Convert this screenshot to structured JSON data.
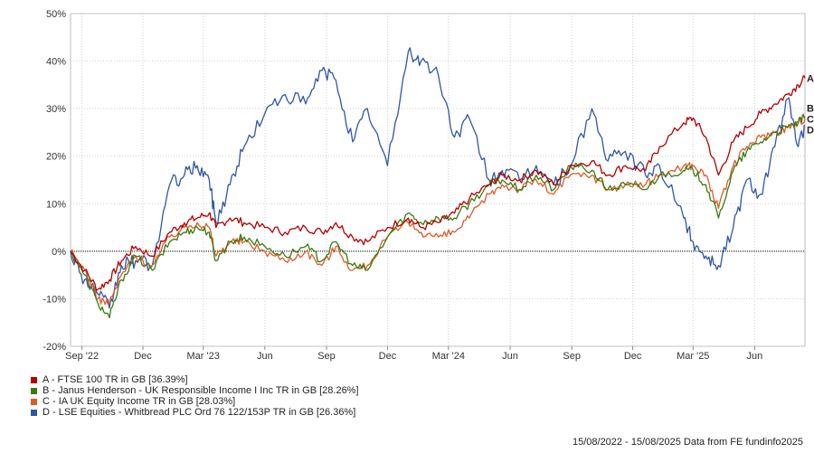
{
  "chart_data": {
    "type": "line",
    "y_unit": "%",
    "ylim": [
      -20,
      50
    ],
    "y_ticks": [
      -20,
      -10,
      0,
      10,
      20,
      30,
      40,
      50
    ],
    "y_tick_labels": [
      "-20%",
      "-10%",
      "0%",
      "10%",
      "20%",
      "30%",
      "40%",
      "50%"
    ],
    "x_range": [
      "2022-08-15",
      "2025-08-15"
    ],
    "x_ticks": [
      {
        "date": "2022-09-01",
        "label": "Sep '22"
      },
      {
        "date": "2022-12-01",
        "label": "Dec"
      },
      {
        "date": "2023-03-01",
        "label": "Mar '23"
      },
      {
        "date": "2023-06-01",
        "label": "Jun"
      },
      {
        "date": "2023-09-01",
        "label": "Sep"
      },
      {
        "date": "2023-12-01",
        "label": "Dec"
      },
      {
        "date": "2024-03-01",
        "label": "Mar '24"
      },
      {
        "date": "2024-06-01",
        "label": "Jun"
      },
      {
        "date": "2024-09-01",
        "label": "Sep"
      },
      {
        "date": "2024-12-01",
        "label": "Dec"
      },
      {
        "date": "2025-03-01",
        "label": "Mar '25"
      },
      {
        "date": "2025-06-01",
        "label": "Jun"
      }
    ],
    "grid": true,
    "legend_position": "bottom-left",
    "series": [
      {
        "letter": "A",
        "name": "A - FTSE 100 TR in GB [36.39%]",
        "color": "#b30000",
        "points": [
          [
            "2022-08-15",
            0
          ],
          [
            "2022-09-05",
            -4
          ],
          [
            "2022-09-25",
            -8
          ],
          [
            "2022-10-12",
            -6
          ],
          [
            "2022-10-30",
            -2
          ],
          [
            "2022-11-20",
            1
          ],
          [
            "2022-12-15",
            -1
          ],
          [
            "2023-01-10",
            4
          ],
          [
            "2023-02-01",
            6
          ],
          [
            "2023-02-20",
            7
          ],
          [
            "2023-03-10",
            8
          ],
          [
            "2023-03-20",
            5
          ],
          [
            "2023-04-10",
            7
          ],
          [
            "2023-05-01",
            6
          ],
          [
            "2023-06-01",
            5
          ],
          [
            "2023-07-01",
            4
          ],
          [
            "2023-08-01",
            5
          ],
          [
            "2023-08-25",
            4
          ],
          [
            "2023-09-15",
            6
          ],
          [
            "2023-10-10",
            3
          ],
          [
            "2023-11-01",
            2
          ],
          [
            "2023-12-01",
            5
          ],
          [
            "2024-01-01",
            7
          ],
          [
            "2024-01-20",
            5
          ],
          [
            "2024-02-15",
            6
          ],
          [
            "2024-03-10",
            8
          ],
          [
            "2024-04-01",
            11
          ],
          [
            "2024-05-01",
            14
          ],
          [
            "2024-05-20",
            16
          ],
          [
            "2024-06-15",
            15
          ],
          [
            "2024-07-10",
            17
          ],
          [
            "2024-08-05",
            14
          ],
          [
            "2024-08-30",
            18
          ],
          [
            "2024-10-01",
            19
          ],
          [
            "2024-10-25",
            16
          ],
          [
            "2024-11-20",
            18
          ],
          [
            "2024-12-20",
            17
          ],
          [
            "2025-01-10",
            22
          ],
          [
            "2025-02-15",
            27
          ],
          [
            "2025-03-01",
            28
          ],
          [
            "2025-03-20",
            24
          ],
          [
            "2025-04-08",
            16
          ],
          [
            "2025-04-30",
            23
          ],
          [
            "2025-05-20",
            26
          ],
          [
            "2025-06-10",
            29
          ],
          [
            "2025-07-01",
            31
          ],
          [
            "2025-07-20",
            33
          ],
          [
            "2025-08-05",
            35
          ],
          [
            "2025-08-15",
            36.39
          ]
        ]
      },
      {
        "letter": "B",
        "name": "B - Janus Henderson - UK Responsible Income I Inc TR in GB [28.26%]",
        "color": "#3a7a10",
        "points": [
          [
            "2022-08-15",
            0
          ],
          [
            "2022-09-05",
            -5
          ],
          [
            "2022-09-25",
            -11
          ],
          [
            "2022-10-12",
            -14
          ],
          [
            "2022-10-30",
            -6
          ],
          [
            "2022-11-20",
            -1
          ],
          [
            "2022-12-15",
            -4
          ],
          [
            "2023-01-10",
            2
          ],
          [
            "2023-02-01",
            4
          ],
          [
            "2023-02-20",
            5
          ],
          [
            "2023-03-10",
            4
          ],
          [
            "2023-03-20",
            -2
          ],
          [
            "2023-04-10",
            2
          ],
          [
            "2023-05-01",
            3
          ],
          [
            "2023-06-01",
            1
          ],
          [
            "2023-07-01",
            -1
          ],
          [
            "2023-08-01",
            1
          ],
          [
            "2023-08-25",
            -2
          ],
          [
            "2023-09-15",
            2
          ],
          [
            "2023-10-10",
            -3
          ],
          [
            "2023-11-01",
            -4
          ],
          [
            "2023-12-01",
            3
          ],
          [
            "2024-01-01",
            8
          ],
          [
            "2024-01-20",
            6
          ],
          [
            "2024-02-15",
            7
          ],
          [
            "2024-03-10",
            7
          ],
          [
            "2024-04-01",
            10
          ],
          [
            "2024-05-01",
            14
          ],
          [
            "2024-05-20",
            15
          ],
          [
            "2024-06-15",
            13
          ],
          [
            "2024-07-10",
            16
          ],
          [
            "2024-08-05",
            13
          ],
          [
            "2024-08-30",
            18
          ],
          [
            "2024-10-01",
            17
          ],
          [
            "2024-10-25",
            13
          ],
          [
            "2024-11-20",
            14
          ],
          [
            "2024-12-20",
            13
          ],
          [
            "2025-01-10",
            16
          ],
          [
            "2025-02-15",
            17
          ],
          [
            "2025-03-01",
            17
          ],
          [
            "2025-03-20",
            14
          ],
          [
            "2025-04-08",
            7
          ],
          [
            "2025-04-30",
            17
          ],
          [
            "2025-05-20",
            21
          ],
          [
            "2025-06-10",
            23
          ],
          [
            "2025-07-01",
            25
          ],
          [
            "2025-07-20",
            26
          ],
          [
            "2025-08-05",
            27
          ],
          [
            "2025-08-15",
            28.26
          ]
        ]
      },
      {
        "letter": "C",
        "name": "C - IA UK Equity Income TR in GB [28.03%]",
        "color": "#e05a28",
        "points": [
          [
            "2022-08-15",
            0
          ],
          [
            "2022-09-05",
            -4
          ],
          [
            "2022-09-25",
            -10
          ],
          [
            "2022-10-12",
            -11
          ],
          [
            "2022-10-30",
            -5
          ],
          [
            "2022-11-20",
            -1
          ],
          [
            "2022-12-15",
            -3
          ],
          [
            "2023-01-10",
            3
          ],
          [
            "2023-02-01",
            5
          ],
          [
            "2023-02-20",
            6
          ],
          [
            "2023-03-10",
            5
          ],
          [
            "2023-03-20",
            -1
          ],
          [
            "2023-04-10",
            2
          ],
          [
            "2023-05-01",
            2
          ],
          [
            "2023-06-01",
            0
          ],
          [
            "2023-07-01",
            -2
          ],
          [
            "2023-08-01",
            0
          ],
          [
            "2023-08-25",
            -3
          ],
          [
            "2023-09-15",
            1
          ],
          [
            "2023-10-10",
            -4
          ],
          [
            "2023-11-01",
            -3
          ],
          [
            "2023-12-01",
            3
          ],
          [
            "2024-01-01",
            6
          ],
          [
            "2024-01-20",
            4
          ],
          [
            "2024-02-15",
            3
          ],
          [
            "2024-03-10",
            4
          ],
          [
            "2024-04-01",
            7
          ],
          [
            "2024-05-01",
            12
          ],
          [
            "2024-05-20",
            14
          ],
          [
            "2024-06-15",
            13
          ],
          [
            "2024-07-10",
            15
          ],
          [
            "2024-08-05",
            12
          ],
          [
            "2024-08-30",
            16
          ],
          [
            "2024-10-01",
            16
          ],
          [
            "2024-10-25",
            13
          ],
          [
            "2024-11-20",
            14
          ],
          [
            "2024-12-20",
            14
          ],
          [
            "2025-01-10",
            16
          ],
          [
            "2025-02-15",
            18
          ],
          [
            "2025-03-01",
            18
          ],
          [
            "2025-03-20",
            16
          ],
          [
            "2025-04-08",
            9
          ],
          [
            "2025-04-30",
            18
          ],
          [
            "2025-05-20",
            22
          ],
          [
            "2025-06-10",
            24
          ],
          [
            "2025-07-01",
            25
          ],
          [
            "2025-07-20",
            26
          ],
          [
            "2025-08-05",
            27
          ],
          [
            "2025-08-15",
            28.03
          ]
        ]
      },
      {
        "letter": "D",
        "name": "D - LSE Equities - Whitbread PLC Ord 76 122/153P TR in GB [26.36%]",
        "color": "#2f56a6",
        "points": [
          [
            "2022-08-15",
            0
          ],
          [
            "2022-09-05",
            -6
          ],
          [
            "2022-09-25",
            -9
          ],
          [
            "2022-10-12",
            -12
          ],
          [
            "2022-10-30",
            -3
          ],
          [
            "2022-11-20",
            -2
          ],
          [
            "2022-12-15",
            -3
          ],
          [
            "2023-01-10",
            14
          ],
          [
            "2023-02-01",
            16
          ],
          [
            "2023-02-20",
            18
          ],
          [
            "2023-03-10",
            15
          ],
          [
            "2023-03-20",
            6
          ],
          [
            "2023-04-10",
            14
          ],
          [
            "2023-05-01",
            22
          ],
          [
            "2023-06-01",
            29
          ],
          [
            "2023-07-01",
            33
          ],
          [
            "2023-08-01",
            31
          ],
          [
            "2023-08-25",
            38
          ],
          [
            "2023-09-15",
            36
          ],
          [
            "2023-10-10",
            23
          ],
          [
            "2023-11-01",
            30
          ],
          [
            "2023-12-01",
            18
          ],
          [
            "2024-01-01",
            42
          ],
          [
            "2024-01-20",
            40
          ],
          [
            "2024-02-15",
            37
          ],
          [
            "2024-03-10",
            24
          ],
          [
            "2024-04-01",
            28
          ],
          [
            "2024-05-01",
            15
          ],
          [
            "2024-05-20",
            17
          ],
          [
            "2024-06-15",
            15
          ],
          [
            "2024-07-10",
            18
          ],
          [
            "2024-08-05",
            14
          ],
          [
            "2024-08-30",
            18
          ],
          [
            "2024-10-01",
            30
          ],
          [
            "2024-10-25",
            19
          ],
          [
            "2024-11-20",
            21
          ],
          [
            "2024-12-20",
            16
          ],
          [
            "2025-01-10",
            18
          ],
          [
            "2025-02-15",
            7
          ],
          [
            "2025-03-01",
            2
          ],
          [
            "2025-03-20",
            -1
          ],
          [
            "2025-04-08",
            -3
          ],
          [
            "2025-04-30",
            5
          ],
          [
            "2025-05-20",
            15
          ],
          [
            "2025-06-10",
            12
          ],
          [
            "2025-07-01",
            22
          ],
          [
            "2025-07-20",
            32
          ],
          [
            "2025-08-05",
            22
          ],
          [
            "2025-08-15",
            26.36
          ]
        ]
      }
    ]
  },
  "footer": {
    "text": "15/08/2022 - 15/08/2025 Data from FE fundinfo2025"
  }
}
